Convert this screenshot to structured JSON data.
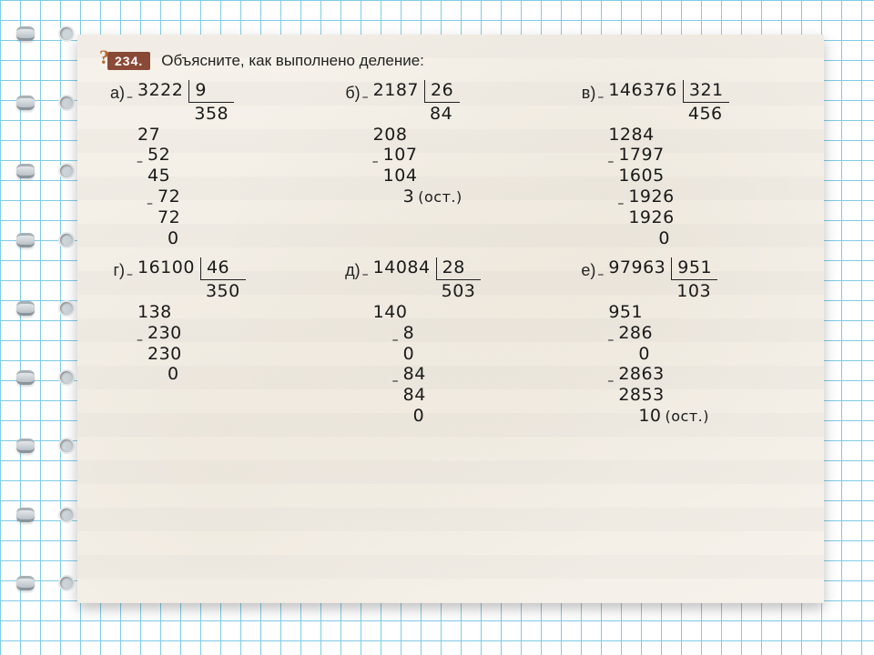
{
  "task": {
    "badge_symbol": "?",
    "number": "234.",
    "text": "Объясните, как выполнено деление:"
  },
  "colors": {
    "grid_line": "#7fcce6",
    "page_bg": "#f6f2eb",
    "badge_bg": "#8b4a37",
    "badge_symbol": "#b96b2e",
    "text": "#1a1a1a"
  },
  "problems": {
    "a": {
      "label": "а)",
      "dividend": "3222",
      "divisor": "9",
      "quotient": "358",
      "steps": [
        {
          "minus": true,
          "sub": "27",
          "pad": 0
        },
        {
          "line": "52",
          "pad": 1,
          "minus": true
        },
        {
          "sub": "45",
          "pad": 1
        },
        {
          "line": "72",
          "pad": 2,
          "minus": true
        },
        {
          "sub": "72",
          "pad": 2
        },
        {
          "final": "0",
          "pad": 3
        }
      ]
    },
    "b": {
      "label": "б)",
      "dividend": "2187",
      "divisor": "26",
      "quotient": "84",
      "steps": [
        {
          "minus": true,
          "sub": "208",
          "pad": 0
        },
        {
          "line": "107",
          "pad": 1,
          "minus": true
        },
        {
          "sub": "104",
          "pad": 1
        },
        {
          "final": "3",
          "pad": 3,
          "ost": "(ост.)"
        }
      ]
    },
    "c": {
      "label": "в)",
      "dividend": "146376",
      "divisor": "321",
      "quotient": "456",
      "steps": [
        {
          "minus": true,
          "sub": "1284",
          "pad": 0
        },
        {
          "line": "1797",
          "pad": 1,
          "minus": true
        },
        {
          "sub": "1605",
          "pad": 1
        },
        {
          "line": "1926",
          "pad": 2,
          "minus": true
        },
        {
          "sub": "1926",
          "pad": 2
        },
        {
          "final": "0",
          "pad": 5
        }
      ]
    },
    "g": {
      "label": "г)",
      "dividend": "16100",
      "divisor": "46",
      "quotient": "350",
      "steps": [
        {
          "minus": true,
          "sub": "138",
          "pad": 0
        },
        {
          "line": "230",
          "pad": 1,
          "minus": true
        },
        {
          "sub": "230",
          "pad": 1
        },
        {
          "final": "0",
          "pad": 3
        }
      ]
    },
    "d": {
      "label": "д)",
      "dividend": "14084",
      "divisor": "28",
      "quotient": "503",
      "steps": [
        {
          "minus": true,
          "sub": "140",
          "pad": 0
        },
        {
          "line": "8",
          "pad": 3,
          "minus": true
        },
        {
          "sub": "0",
          "pad": 3
        },
        {
          "line": "84",
          "pad": 3,
          "minus": true
        },
        {
          "sub": "84",
          "pad": 3
        },
        {
          "final": "0",
          "pad": 4
        }
      ]
    },
    "e": {
      "label": "е)",
      "dividend": "97963",
      "divisor": "951",
      "quotient": "103",
      "steps": [
        {
          "minus": true,
          "sub": "951",
          "pad": 0
        },
        {
          "line": "286",
          "pad": 1,
          "minus": true
        },
        {
          "sub": "0",
          "pad": 3
        },
        {
          "line": "2863",
          "pad": 1,
          "minus": true
        },
        {
          "sub": "2853",
          "pad": 1
        },
        {
          "final": "10",
          "pad": 3,
          "ost": "(ост.)"
        }
      ]
    }
  },
  "layout": {
    "ring_count": 9
  }
}
